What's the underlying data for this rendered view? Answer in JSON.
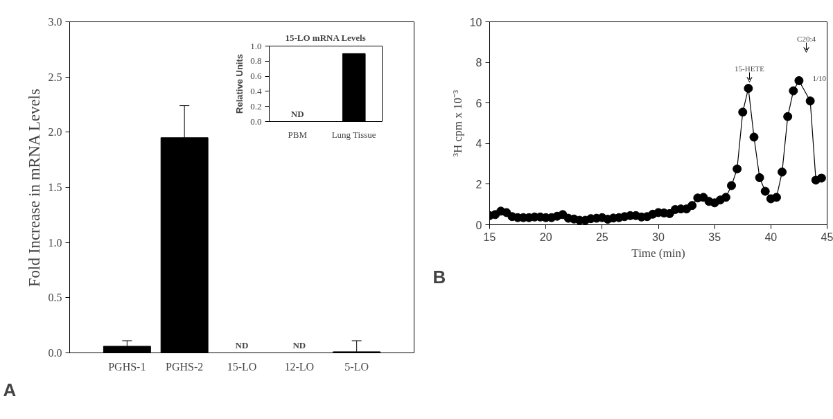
{
  "chart_data": [
    {
      "type": "bar",
      "ylabel": "Fold Increase in mRNA Levels",
      "categories": [
        "PGHS-1",
        "PGHS-2",
        "15-LO",
        "12-LO",
        "5-LO"
      ],
      "values": [
        0.06,
        1.95,
        null,
        null,
        0.01
      ],
      "color": "#000000",
      "errors": [
        [
          0.06,
          0.11
        ],
        [
          1.95,
          2.24
        ],
        null,
        null,
        [
          0.01,
          0.11
        ]
      ],
      "value_labels": [
        null,
        null,
        "ND",
        "ND",
        null
      ],
      "ylim": [
        0,
        3
      ],
      "yticks": [
        {
          "value": 0,
          "label": "0.0"
        },
        0.5,
        {
          "value": 1,
          "label": "1.0"
        },
        1.5,
        {
          "value": 2,
          "label": "2.0"
        },
        2.5,
        {
          "value": 3,
          "label": "3.0"
        }
      ],
      "grid": false,
      "annotations": [
        "A"
      ]
    },
    {
      "type": "bar",
      "title": "15-LO mRNA Levels",
      "ylabel": "Relative Units",
      "categories": [
        "PBM",
        "Lung Tissue"
      ],
      "values": [
        null,
        0.9
      ],
      "color": "#000000",
      "value_labels": [
        "ND",
        null
      ],
      "ylim": [
        0,
        1
      ],
      "yticks": [
        {
          "value": 0,
          "label": "0.0"
        },
        0.2,
        0.4,
        0.6,
        0.8,
        {
          "value": 1,
          "label": "1.0"
        }
      ],
      "grid": false
    },
    {
      "type": "line",
      "xlabel": "Time (min)",
      "ylabel": "³H cpm x 10⁻³",
      "marker": "circle",
      "line_style": "solid",
      "grid": false,
      "xlim": [
        15,
        45
      ],
      "xticks": [
        15,
        20,
        25,
        30,
        35,
        40,
        45
      ],
      "ylim": [
        0,
        10
      ],
      "yticks": [
        0,
        2,
        4,
        6,
        8,
        10
      ],
      "series": [
        {
          "color": "#000000",
          "x": [
            15,
            15.5,
            16,
            16.5,
            17,
            17.5,
            18,
            18.5,
            19,
            19.5,
            20,
            20.5,
            21,
            21.5,
            22,
            22.5,
            23,
            23.5,
            24,
            24.5,
            25,
            25.5,
            26,
            26.5,
            27,
            27.5,
            28,
            28.5,
            29,
            29.5,
            30,
            30.5,
            31,
            31.5,
            32,
            32.5,
            33,
            33.5,
            34,
            34.5,
            35,
            35.5,
            36,
            36.5,
            37,
            37.5,
            38,
            38.5,
            39,
            39.5,
            40,
            40.5,
            41,
            41.5,
            42,
            42.5,
            43.5,
            44,
            44.5
          ],
          "values": [
            0.45,
            0.5,
            0.67,
            0.6,
            0.4,
            0.35,
            0.35,
            0.35,
            0.38,
            0.38,
            0.35,
            0.35,
            0.42,
            0.5,
            0.32,
            0.28,
            0.22,
            0.22,
            0.3,
            0.32,
            0.35,
            0.27,
            0.33,
            0.35,
            0.4,
            0.45,
            0.45,
            0.38,
            0.4,
            0.52,
            0.6,
            0.58,
            0.55,
            0.75,
            0.78,
            0.78,
            0.95,
            1.32,
            1.35,
            1.15,
            1.08,
            1.22,
            1.35,
            1.93,
            2.75,
            5.55,
            6.72,
            4.32,
            2.32,
            1.65,
            1.28,
            1.35,
            2.6,
            5.33,
            6.6,
            7.1,
            6.1,
            2.2,
            2.3
          ]
        }
      ],
      "annotations": [
        "B",
        "15-HETE",
        "C20:4",
        "1/10"
      ]
    }
  ]
}
